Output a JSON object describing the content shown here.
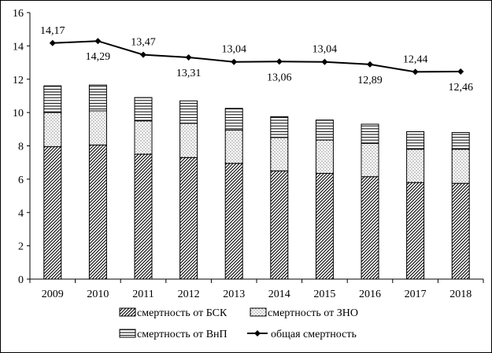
{
  "chart_data": {
    "type": "bar",
    "stacked": true,
    "categories": [
      "2009",
      "2010",
      "2011",
      "2012",
      "2013",
      "2014",
      "2015",
      "2016",
      "2017",
      "2018"
    ],
    "series": [
      {
        "name": "смертность от БСК",
        "pattern": "diagonal-hatch",
        "values": [
          7.95,
          8.05,
          7.5,
          7.3,
          6.95,
          6.5,
          6.35,
          6.15,
          5.8,
          5.75
        ]
      },
      {
        "name": "смертность от ЗНО",
        "pattern": "dots",
        "values": [
          2.05,
          2.05,
          2.0,
          2.05,
          2.0,
          2.0,
          2.0,
          2.0,
          2.0,
          2.05
        ]
      },
      {
        "name": "смертность от ВнП",
        "pattern": "horizontal-lines",
        "values": [
          1.6,
          1.55,
          1.4,
          1.35,
          1.3,
          1.25,
          1.2,
          1.15,
          1.05,
          1.0
        ]
      }
    ],
    "line_series": {
      "name": "общая смертность",
      "marker": "diamond",
      "values": [
        14.17,
        14.29,
        13.47,
        13.31,
        13.04,
        13.06,
        13.04,
        12.89,
        12.44,
        12.46
      ],
      "labels": [
        "14,17",
        "14,29",
        "13,47",
        "13,31",
        "13,04",
        "13,06",
        "13,04",
        "12,89",
        "12,44",
        "12,46"
      ],
      "label_position": [
        "above",
        "below",
        "above",
        "below",
        "above",
        "below",
        "above",
        "below",
        "above",
        "below"
      ]
    },
    "ylim": [
      0,
      16
    ],
    "yticks": [
      "0",
      "2",
      "4",
      "6",
      "8",
      "10",
      "12",
      "14",
      "16"
    ],
    "ytick_values": [
      0,
      2,
      4,
      6,
      8,
      10,
      12,
      14,
      16
    ],
    "grid": false,
    "legend": {
      "placement": "bottom",
      "columns": 2
    },
    "title": "",
    "xlabel": "",
    "ylabel": ""
  },
  "colors": {
    "ink": "#000000",
    "background": "#ffffff"
  }
}
